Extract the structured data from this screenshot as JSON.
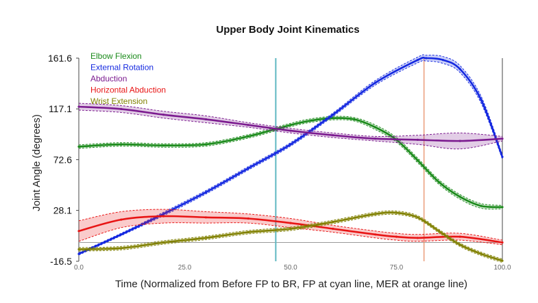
{
  "chart_data": {
    "type": "line",
    "title": "Upper Body Joint Kinematics",
    "xlabel": "Time (Normalized from Before FP to BR, FP at cyan line, MER at orange line)",
    "ylabel": "Joint Angle (degrees)",
    "xlim": [
      0,
      100
    ],
    "ylim": [
      -16.5,
      161.6
    ],
    "yticks": [
      161.6,
      117.1,
      72.6,
      28.1,
      -16.5
    ],
    "ytick_labels": [
      "161.6",
      "117.1",
      "72.6",
      "28.1",
      "-16.5"
    ],
    "xticks": [
      0,
      25,
      50,
      75,
      100
    ],
    "xtick_labels": [
      "0.0",
      "25.0",
      "50.0",
      "75.0",
      "100.0"
    ],
    "zero_line": 0,
    "vlines": [
      {
        "x": 46.5,
        "color": "#5fb8c2"
      },
      {
        "x": 81.5,
        "color": "#e8906a"
      }
    ],
    "legend_position": "top-left",
    "series": [
      {
        "name": "Elbow Flexion",
        "color": "#1a8a1a",
        "x": [
          0,
          10,
          20,
          30,
          40,
          50,
          55,
          60,
          65,
          70,
          75,
          80,
          85,
          90,
          95,
          100
        ],
        "y": [
          84,
          86,
          85,
          86,
          93,
          103,
          107,
          109,
          108,
          101,
          90,
          72,
          53,
          40,
          32,
          31
        ],
        "band": [
          1.5,
          1.5,
          1.5,
          1.5,
          1.5,
          1.5,
          1.5,
          1.5,
          1.5,
          2,
          2,
          2,
          2,
          2,
          2,
          1.5
        ]
      },
      {
        "name": "External Rotation",
        "color": "#1428e0",
        "x": [
          0,
          10,
          20,
          30,
          40,
          50,
          60,
          70,
          80,
          82,
          86,
          90,
          95,
          100
        ],
        "y": [
          -10,
          7,
          25,
          44,
          65,
          86,
          112,
          140,
          160,
          161.6,
          160,
          152,
          125,
          75
        ],
        "band": [
          1,
          1,
          1.5,
          1.5,
          1.5,
          1.5,
          1.5,
          2,
          2.5,
          2.5,
          3,
          3,
          3,
          2
        ]
      },
      {
        "name": "Abduction",
        "color": "#7b1a8f",
        "x": [
          0,
          10,
          20,
          30,
          40,
          50,
          60,
          70,
          80,
          90,
          100
        ],
        "y": [
          119,
          117,
          112,
          108,
          103,
          98,
          94,
          91,
          90,
          89,
          91
        ],
        "band": [
          3,
          3,
          3,
          3,
          2,
          2,
          2,
          2,
          4,
          7,
          2
        ]
      },
      {
        "name": "Horizontal Abduction",
        "color": "#e81414",
        "x": [
          0,
          10,
          20,
          30,
          40,
          50,
          60,
          70,
          75,
          80,
          90,
          100
        ],
        "y": [
          10,
          20,
          23,
          22,
          21,
          17,
          12,
          7,
          5,
          4,
          5,
          0
        ],
        "band": [
          9,
          7,
          6,
          5,
          4,
          4,
          3,
          3,
          3,
          3,
          3,
          2
        ]
      },
      {
        "name": "Wrist Extension",
        "color": "#808000",
        "x": [
          0,
          10,
          20,
          30,
          40,
          50,
          60,
          70,
          75,
          80,
          85,
          90,
          95,
          100
        ],
        "y": [
          -6,
          -5,
          0,
          4,
          9,
          12,
          18,
          25,
          26,
          22,
          10,
          -2,
          -10,
          -16
        ],
        "band": [
          1.5,
          1.5,
          1.5,
          1.5,
          1.5,
          1.5,
          1.5,
          1.5,
          1.5,
          1.5,
          1.5,
          1.5,
          1.5,
          1.5
        ]
      }
    ]
  }
}
